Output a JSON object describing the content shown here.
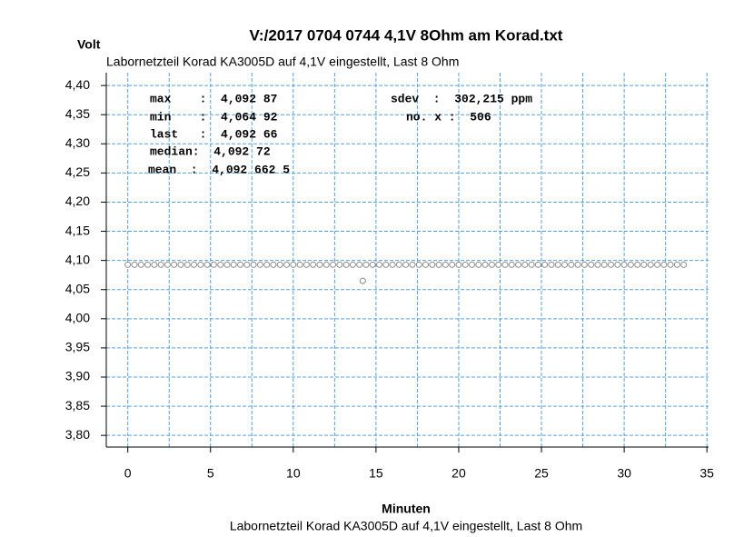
{
  "chart_data": {
    "type": "scatter",
    "title": "V:/2017 0704 0744 4,1V 8Ohm am Korad.txt",
    "subtitle": "Labornetzteil Korad KA3005D auf 4,1V eingestellt, Last 8 Ohm",
    "y_label": "Volt",
    "x_label": "Minuten",
    "caption": "Labornetzteil Korad KA3005D auf 4,1V eingestellt, Last 8 Ohm",
    "annotations": [
      "max    :  4,092 87",
      "min    :  4,064 92",
      "last   :  4,092 66",
      "median:  4,092 72",
      "mean  :  4,092 662 5",
      "sdev  :  302,215 ppm",
      "no. x :  506"
    ],
    "xlim": [
      -1.3,
      35.1
    ],
    "ylim": [
      3.78,
      4.422
    ],
    "xticks": [
      0,
      5,
      10,
      15,
      20,
      25,
      30,
      35
    ],
    "xgrid": [
      0,
      2.5,
      5,
      7.5,
      10,
      12.5,
      15,
      17.5,
      20,
      22.5,
      25,
      27.5,
      30,
      32.5,
      35
    ],
    "yticks": [
      {
        "value": 3.8,
        "label": "3,80"
      },
      {
        "value": 3.85,
        "label": "3,85"
      },
      {
        "value": 3.9,
        "label": "3,90"
      },
      {
        "value": 3.95,
        "label": "3,95"
      },
      {
        "value": 4.0,
        "label": "4,00"
      },
      {
        "value": 4.05,
        "label": "4,05"
      },
      {
        "value": 4.1,
        "label": "4,10"
      },
      {
        "value": 4.15,
        "label": "4,15"
      },
      {
        "value": 4.2,
        "label": "4,20"
      },
      {
        "value": 4.25,
        "label": "4,25"
      },
      {
        "value": 4.3,
        "label": "4,30"
      },
      {
        "value": 4.35,
        "label": "4,35"
      },
      {
        "value": 4.4,
        "label": "4,40"
      }
    ],
    "grid": true,
    "grid_color": "#5aa0d8",
    "color": "#888888",
    "x": [
      0,
      0.4,
      0.8,
      1.2,
      1.6,
      2,
      2.4,
      2.8,
      3.2,
      3.6,
      4,
      4.4,
      4.8,
      5.2,
      5.6,
      6,
      6.4,
      6.8,
      7.2,
      7.6,
      8,
      8.4,
      8.8,
      9.2,
      9.6,
      10,
      10.4,
      10.8,
      11.2,
      11.6,
      12,
      12.4,
      12.8,
      13.2,
      13.6,
      14,
      14.2,
      14.4,
      14.8,
      15.2,
      15.6,
      16,
      16.4,
      16.8,
      17.2,
      17.6,
      18,
      18.4,
      18.8,
      19.2,
      19.6,
      20,
      20.4,
      20.8,
      21.2,
      21.6,
      22,
      22.4,
      22.8,
      23.2,
      23.6,
      24,
      24.4,
      24.8,
      25.2,
      25.6,
      26,
      26.4,
      26.8,
      27.2,
      27.6,
      28,
      28.4,
      28.8,
      29.2,
      29.6,
      30,
      30.4,
      30.8,
      31.2,
      31.6,
      32,
      32.4,
      32.8,
      33.2,
      33.6
    ],
    "values": [
      4.0927,
      4.0927,
      4.0927,
      4.0927,
      4.0927,
      4.0927,
      4.0927,
      4.0927,
      4.0927,
      4.0927,
      4.0927,
      4.0927,
      4.0927,
      4.0927,
      4.0927,
      4.0927,
      4.0927,
      4.0927,
      4.0927,
      4.0927,
      4.0927,
      4.0927,
      4.0927,
      4.0927,
      4.0927,
      4.0927,
      4.0927,
      4.0927,
      4.0927,
      4.0927,
      4.0927,
      4.0927,
      4.0927,
      4.0927,
      4.0927,
      4.0927,
      4.0649,
      4.0927,
      4.0927,
      4.0927,
      4.0927,
      4.0927,
      4.0927,
      4.0927,
      4.0927,
      4.0927,
      4.0927,
      4.0927,
      4.0927,
      4.0927,
      4.0927,
      4.0927,
      4.0927,
      4.0927,
      4.0927,
      4.0927,
      4.0927,
      4.0927,
      4.0927,
      4.0927,
      4.0927,
      4.0927,
      4.0927,
      4.0927,
      4.0927,
      4.0927,
      4.0927,
      4.0927,
      4.0927,
      4.0927,
      4.0927,
      4.0927,
      4.0927,
      4.0927,
      4.0927,
      4.0927,
      4.0927,
      4.0927,
      4.0927,
      4.0927,
      4.0927,
      4.0927,
      4.0927,
      4.0927,
      4.0927,
      4.0927
    ]
  }
}
